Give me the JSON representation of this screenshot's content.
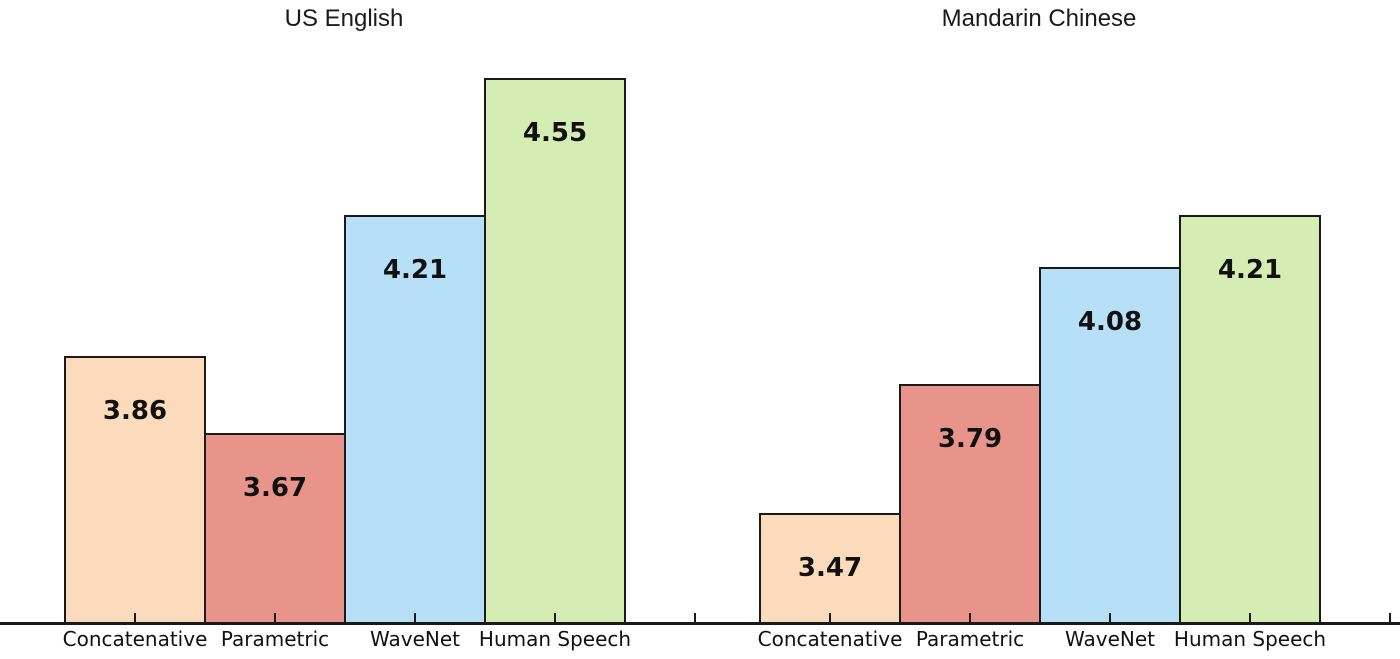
{
  "figure": {
    "background": "#ffffff",
    "axis_color": "#1a1a1a",
    "bar_border_color": "#1a1a1a",
    "value_label_color": "#111111"
  },
  "palette": {
    "concatenative": "#FBDBBC",
    "parametric": "#E8948A",
    "wavenet": "#B8DFF8",
    "human_speech": "#D5ECB2"
  },
  "chart_data": [
    {
      "type": "bar",
      "title": "US English",
      "categories": [
        "Concatenative",
        "Parametric",
        "WaveNet",
        "Human Speech"
      ],
      "values": [
        3.86,
        3.67,
        4.21,
        4.55
      ],
      "bar_labels": [
        "3.86",
        "3.67",
        "4.21",
        "4.55"
      ],
      "bar_colors": [
        "#FBDBBC",
        "#E8948A",
        "#B8DFF8",
        "#D5ECB2"
      ],
      "xlabel": "",
      "ylabel": "",
      "ylim": [
        3.2,
        4.75
      ],
      "grid": false,
      "legend_position": "none",
      "y_axis_visible": false
    },
    {
      "type": "bar",
      "title": "Mandarin Chinese",
      "categories": [
        "Concatenative",
        "Parametric",
        "WaveNet",
        "Human Speech"
      ],
      "values": [
        3.47,
        3.79,
        4.08,
        4.21
      ],
      "bar_labels": [
        "3.47",
        "3.79",
        "4.08",
        "4.21"
      ],
      "bar_colors": [
        "#FBDBBC",
        "#E8948A",
        "#B8DFF8",
        "#D5ECB2"
      ],
      "xlabel": "",
      "ylabel": "",
      "ylim": [
        3.2,
        4.75
      ],
      "grid": false,
      "legend_position": "none",
      "y_axis_visible": false
    }
  ]
}
